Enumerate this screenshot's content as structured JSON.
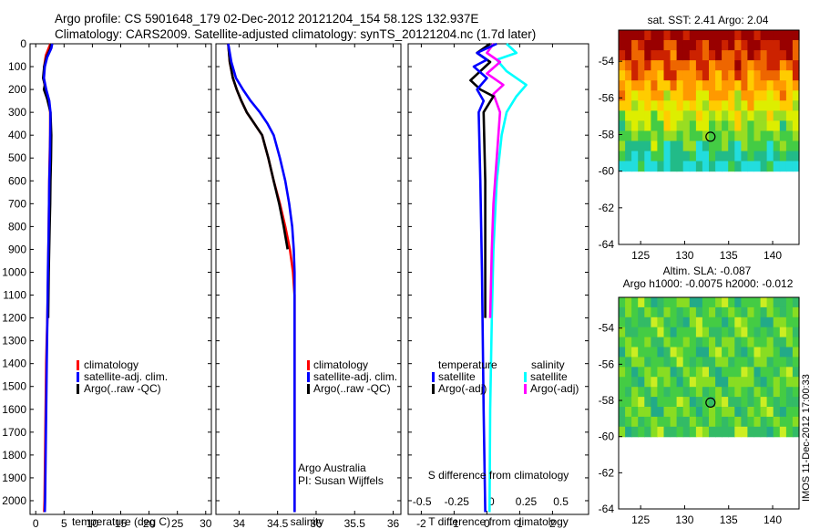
{
  "header": {
    "line1": "Argo profile: CS 5901648_179 02-Dec-2012 20121204_154 58.12S 132.937E",
    "line2": "Climatology: CARS2009. Satellite-adjusted climatology: synTS_20121204.nc (1.7d later)"
  },
  "watermark": "IMOS 11-Dec-2012 17:00:33",
  "colors": {
    "climatology": "#ff0000",
    "satellite": "#0000ff",
    "argo": "#000000",
    "argo_salt_diff": "#ff00ff",
    "sat_salt_diff": "#00ffff",
    "axis": "#000000"
  },
  "chart_data": [
    {
      "id": "temperature",
      "type": "line",
      "xlabel": "temperature (deg C)",
      "ylabel": "",
      "xlim": [
        -1,
        31
      ],
      "ylim": [
        2060,
        0
      ],
      "xticks": [
        0,
        5,
        10,
        15,
        20,
        25,
        30
      ],
      "xtick_labels": [
        "0",
        "5",
        "10",
        "15",
        "20",
        "25",
        "30"
      ],
      "yticks": [
        0,
        100,
        200,
        300,
        400,
        500,
        600,
        700,
        800,
        900,
        1000,
        1100,
        1200,
        1300,
        1400,
        1500,
        1600,
        1700,
        1800,
        1900,
        2000
      ],
      "legend": [
        "climatology",
        "satellite-adj. clim.",
        "Argo(..raw -QC)"
      ],
      "legend_position": "lower-right",
      "series": [
        {
          "name": "climatology",
          "color": "#ff0000",
          "x": [
            2.6,
            1.8,
            1.5,
            1.4,
            1.7,
            2.3,
            2.55,
            2.55,
            2.45,
            2.4,
            2.3,
            2.2,
            2.05,
            1.95,
            1.85,
            1.8,
            1.75,
            1.7,
            1.65,
            1.6,
            1.55,
            1.5
          ],
          "y": [
            0,
            50,
            100,
            150,
            200,
            250,
            300,
            400,
            500,
            600,
            800,
            1000,
            1200,
            1300,
            1400,
            1500,
            1600,
            1700,
            1800,
            1900,
            2000,
            2050
          ]
        },
        {
          "name": "Argo(..raw -QC)",
          "color": "#000000",
          "x": [
            2.7,
            2.6,
            1.9,
            1.5,
            1.3,
            1.6,
            1.45,
            2.0,
            2.6,
            2.75,
            2.7,
            2.6,
            2.55,
            2.45,
            2.3,
            2.2
          ],
          "y": [
            0,
            20,
            60,
            100,
            150,
            180,
            200,
            240,
            300,
            400,
            500,
            600,
            700,
            800,
            1000,
            1200
          ]
        },
        {
          "name": "satellite-adj. clim.",
          "color": "#0000ff",
          "x": [
            2.9,
            2.75,
            2.0,
            1.6,
            1.45,
            1.85,
            2.4,
            2.6,
            2.55,
            2.5,
            2.4,
            2.3,
            2.15,
            2.05,
            1.95,
            1.85,
            1.8,
            1.75,
            1.7,
            1.65,
            1.6
          ],
          "y": [
            0,
            20,
            60,
            100,
            150,
            200,
            250,
            300,
            400,
            500,
            600,
            800,
            1000,
            1200,
            1400,
            1600,
            1700,
            1800,
            1900,
            2000,
            2050
          ]
        }
      ]
    },
    {
      "id": "salinity",
      "type": "line",
      "xlabel": "salinity",
      "ylabel": "",
      "xlim": [
        33.7,
        36.1
      ],
      "ylim": [
        2060,
        0
      ],
      "xticks": [
        34,
        34.5,
        35,
        35.5,
        36
      ],
      "xtick_labels": [
        "34",
        "34.5",
        "35",
        "35.5",
        "36"
      ],
      "legend": [
        "climatology",
        "satellite-adj. clim.",
        "Argo(..raw -QC)"
      ],
      "legend_position": "lower-right",
      "annotation": [
        "Argo Australia",
        "PI: Susan Wijffels"
      ],
      "series": [
        {
          "name": "climatology",
          "color": "#ff0000",
          "x": [
            33.86,
            33.88,
            33.92,
            33.97,
            34.03,
            34.1,
            34.2,
            34.3,
            34.38,
            34.45,
            34.53,
            34.6,
            34.66,
            34.7,
            34.72,
            34.72,
            34.72,
            34.72
          ],
          "y": [
            0,
            80,
            150,
            200,
            250,
            300,
            350,
            400,
            500,
            600,
            700,
            800,
            900,
            1000,
            1100,
            1300,
            1700,
            2050
          ]
        },
        {
          "name": "Argo(..raw -QC)",
          "color": "#000000",
          "x": [
            33.86,
            33.88,
            33.92,
            33.97,
            34.03,
            34.1,
            34.2,
            34.3,
            34.38,
            34.45,
            34.52,
            34.58,
            34.63
          ],
          "y": [
            0,
            80,
            150,
            200,
            250,
            300,
            350,
            400,
            500,
            600,
            700,
            800,
            900
          ]
        },
        {
          "name": "satellite-adj. clim.",
          "color": "#0000ff",
          "x": [
            33.86,
            33.9,
            33.96,
            34.05,
            34.15,
            34.27,
            34.37,
            34.45,
            34.53,
            34.6,
            34.65,
            34.69,
            34.71,
            34.72,
            34.72,
            34.72
          ],
          "y": [
            0,
            80,
            150,
            200,
            250,
            300,
            350,
            400,
            500,
            600,
            700,
            800,
            900,
            1000,
            1200,
            2050
          ]
        }
      ]
    },
    {
      "id": "difference",
      "type": "line",
      "xlabel": "T difference from climatology",
      "title_bottom": "S difference from climatology",
      "xlim": [
        -2.4,
        3.1
      ],
      "ylim": [
        2060,
        0
      ],
      "xticks": [
        -2,
        -1,
        0,
        1,
        2
      ],
      "xtick_labels": [
        "-2",
        "-1",
        "0",
        "1",
        "2"
      ],
      "top_ticks": [
        -0.5,
        -0.25,
        0,
        0.25,
        0.5
      ],
      "top_tick_labels": [
        "-0.5",
        "-0.25",
        "0",
        "0.25",
        "0.5"
      ],
      "legend_left_title": "temperature",
      "legend_right_title": "salinity",
      "legend": [
        "satellite",
        "Argo(-adj)",
        "satellite",
        "Argo(-adj)"
      ],
      "legend_position": "lower-center",
      "series": [
        {
          "name": "satellite",
          "group": "salinity",
          "color": "#00ffff",
          "x": [
            0.6,
            0.9,
            0.3,
            0.6,
            1.2,
            0.9,
            0.6,
            0.45,
            0.3,
            0.2,
            0.15,
            0.1,
            0.08
          ],
          "y": [
            0,
            40,
            70,
            120,
            180,
            230,
            300,
            400,
            600,
            900,
            1200,
            1600,
            2050
          ]
        },
        {
          "name": "Argo(-adj)",
          "group": "salinity",
          "color": "#ff00ff",
          "x": [
            0.2,
            0.0,
            0.4,
            0.0,
            0.5,
            0.2,
            0.4,
            0.3,
            0.2,
            0.15,
            0.1
          ],
          "y": [
            0,
            40,
            80,
            130,
            180,
            220,
            300,
            500,
            700,
            900,
            1200
          ]
        },
        {
          "name": "Argo(-adj)",
          "group": "temperature",
          "color": "#000000",
          "x": [
            0.1,
            -0.3,
            0.1,
            -0.5,
            -0.2,
            0.2,
            -0.1,
            -0.05,
            -0.05
          ],
          "y": [
            0,
            40,
            80,
            160,
            200,
            230,
            300,
            600,
            1200
          ]
        },
        {
          "name": "satellite",
          "group": "temperature",
          "color": "#0000ff",
          "x": [
            0.3,
            -0.3,
            0.0,
            -0.4,
            0.0,
            -0.3,
            -0.1,
            -0.25,
            -0.2,
            -0.15,
            -0.1,
            -0.05
          ],
          "y": [
            0,
            40,
            70,
            100,
            150,
            200,
            250,
            300,
            600,
            1000,
            1600,
            2050
          ]
        }
      ]
    },
    {
      "id": "sst_map",
      "type": "heatmap",
      "title": "sat. SST: 2.41  Argo: 2.04",
      "xlim": [
        122.5,
        143
      ],
      "ylim": [
        -64,
        -52.3
      ],
      "data_ylim": [
        -60,
        -52.3
      ],
      "xticks": [
        125,
        130,
        135,
        140
      ],
      "yticks": [
        -54,
        -56,
        -58,
        -60,
        -62,
        -64
      ],
      "marker": {
        "lon": 132.937,
        "lat": -58.12
      },
      "colors": [
        "#990000",
        "#cc2200",
        "#ee6600",
        "#ff9900",
        "#ffcc00",
        "#ddee00",
        "#99dd22",
        "#44cc44",
        "#22bb88",
        "#22dddd"
      ]
    },
    {
      "id": "sla_map",
      "type": "heatmap",
      "title": "Altim. SLA: -0.087",
      "subtitle": "Argo h1000: -0.0075  h2000: -0.012",
      "xlim": [
        122.5,
        143
      ],
      "ylim": [
        -64,
        -52.3
      ],
      "data_ylim": [
        -60,
        -52.3
      ],
      "xticks": [
        125,
        130,
        135,
        140
      ],
      "yticks": [
        -54,
        -56,
        -58,
        -60,
        -62,
        -64
      ],
      "marker": {
        "lon": 132.937,
        "lat": -58.12
      },
      "colors": [
        "#22aa88",
        "#33bb66",
        "#44cc44",
        "#88dd22",
        "#ccee22",
        "#ffee00",
        "#ffbb00",
        "#ff7700",
        "#dd3300"
      ]
    }
  ]
}
